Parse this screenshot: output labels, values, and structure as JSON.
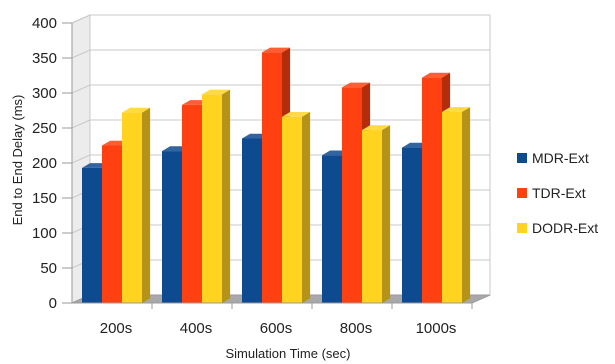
{
  "chart_data": {
    "type": "bar",
    "title": "",
    "xlabel": "Simulation Time (sec)",
    "ylabel": "End to End Delay (ms)",
    "categories": [
      "200s",
      "400s",
      "600s",
      "800s",
      "1000s"
    ],
    "yticks": [
      "0",
      "50",
      "100",
      "150",
      "200",
      "250",
      "300",
      "350",
      "400"
    ],
    "ylim": [
      0,
      400
    ],
    "grid": true,
    "style": "3d",
    "legend_position": "right",
    "series": [
      {
        "name": "MDR-Ext",
        "color": "#0e4a8f",
        "values": [
          193,
          217,
          235,
          211,
          222
        ]
      },
      {
        "name": "TDR-Ext",
        "color": "#ff4010",
        "values": [
          225,
          283,
          358,
          308,
          322
        ]
      },
      {
        "name": "DODR-Ext",
        "color": "#ffd320",
        "values": [
          272,
          298,
          266,
          247,
          273
        ]
      }
    ]
  }
}
